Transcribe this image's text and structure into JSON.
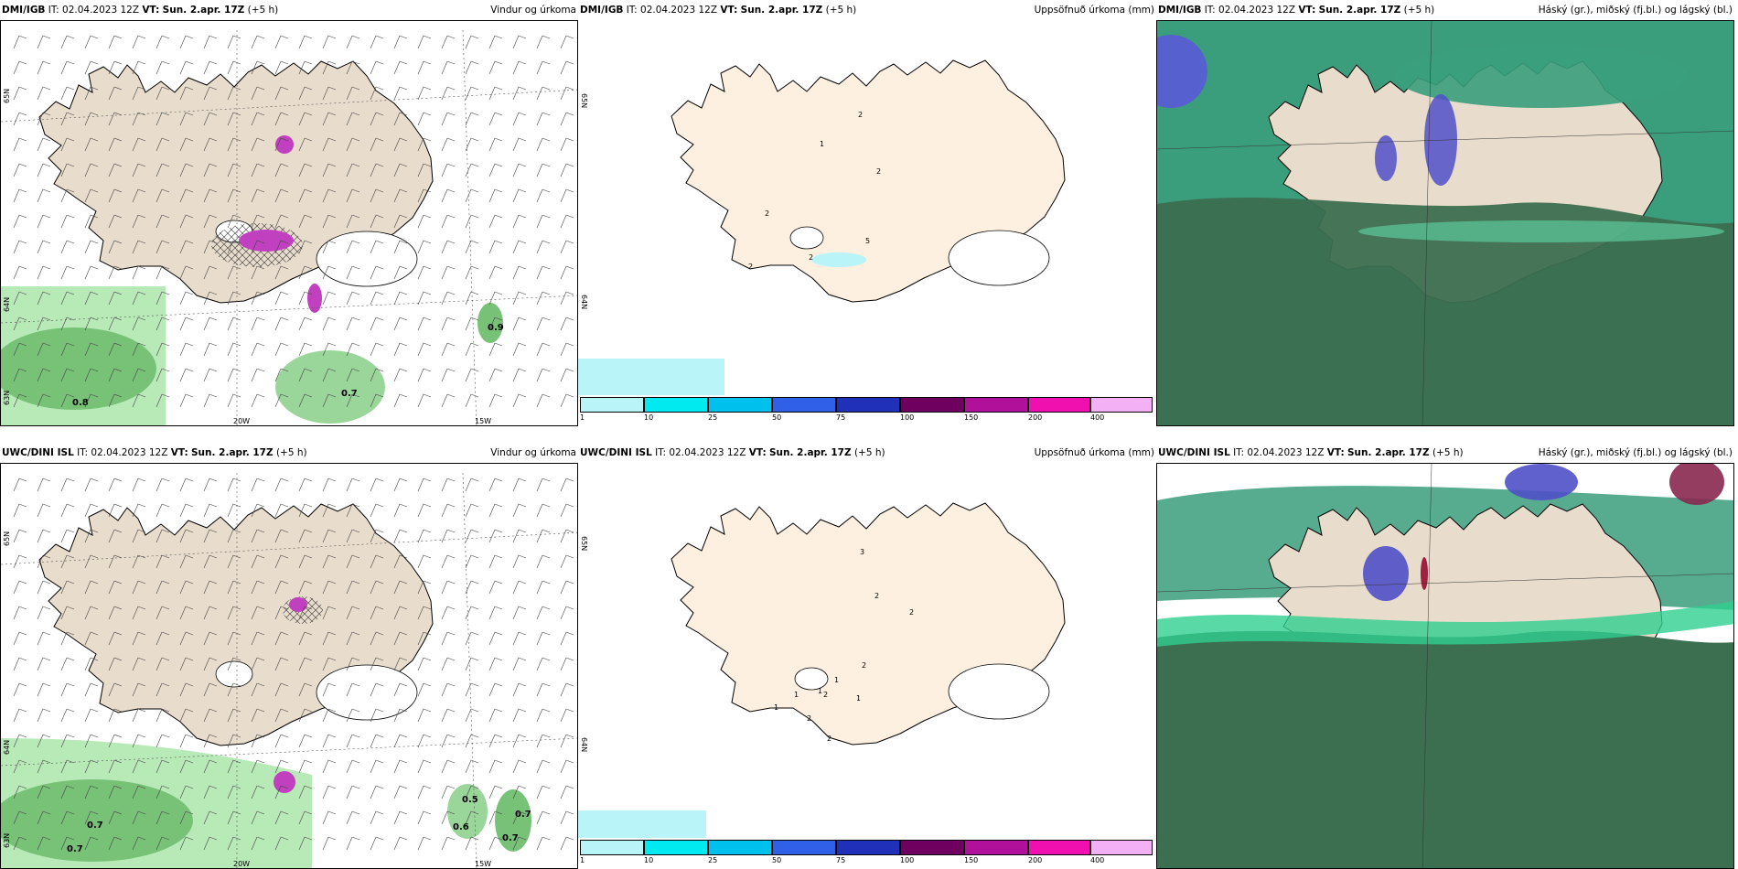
{
  "panels": [
    {
      "model": "DMI/IGB",
      "it_label": "IT:",
      "it": "02.04.2023 12Z",
      "vt_label": "VT:",
      "vt": "Sun. 2.apr. 17Z",
      "lead": "(+5 h)",
      "title": "Vindur og úrkoma",
      "values": [
        "0.8",
        "0.7",
        "0.9"
      ],
      "lat_labels": [
        "65N",
        "64N",
        "63N"
      ],
      "lon_labels": [
        "20W",
        "15W"
      ]
    },
    {
      "model": "DMI/IGB",
      "it_label": "IT:",
      "it": "02.04.2023 12Z",
      "vt_label": "VT:",
      "vt": "Sun. 2.apr. 17Z",
      "lead": "(+5 h)",
      "title": "Uppsöfnuð úrkoma (mm)",
      "values": [
        "2",
        "1",
        "2",
        "2",
        "2",
        "2",
        "5"
      ],
      "lat_labels": [
        "65N",
        "64N"
      ]
    },
    {
      "model": "DMI/IGB",
      "it_label": "IT:",
      "it": "02.04.2023 12Z",
      "vt_label": "VT:",
      "vt": "Sun. 2.apr. 17Z",
      "lead": "(+5 h)",
      "title": "Háský (gr.), miðský (fj.bl.) og lágský (bl.)"
    },
    {
      "model": "UWC/DINI ISL",
      "it_label": "IT:",
      "it": "02.04.2023 12Z",
      "vt_label": "VT:",
      "vt": "Sun. 2.apr. 17Z",
      "lead": "(+5 h)",
      "title": "Vindur og úrkoma",
      "values": [
        "0.7",
        "0.7",
        "0.5",
        "0.6",
        "0.7",
        "0.7"
      ],
      "lat_labels": [
        "65N",
        "64N",
        "63N"
      ],
      "lon_labels": [
        "20W",
        "15W"
      ]
    },
    {
      "model": "UWC/DINI ISL",
      "it_label": "IT:",
      "it": "02.04.2023 12Z",
      "vt_label": "VT:",
      "vt": "Sun. 2.apr. 17Z",
      "lead": "(+5 h)",
      "title": "Uppsöfnuð úrkoma (mm)",
      "values": [
        "3",
        "2",
        "2",
        "2",
        "1",
        "1",
        "2",
        "1",
        "1",
        "1",
        "2",
        "2"
      ],
      "lat_labels": [
        "65N",
        "64N"
      ]
    },
    {
      "model": "UWC/DINI ISL",
      "it_label": "IT:",
      "it": "02.04.2023 12Z",
      "vt_label": "VT:",
      "vt": "Sun. 2.apr. 17Z",
      "lead": "(+5 h)",
      "title": "Háský (gr.), miðský (fj.bl.) og lágský (bl.)"
    }
  ],
  "colorbar": {
    "ticks": [
      "1",
      "10",
      "25",
      "50",
      "75",
      "100",
      "150",
      "200",
      "400"
    ],
    "colors": [
      "#b8f4f8",
      "#00eaf0",
      "#00c0ee",
      "#3060e8",
      "#2030b8",
      "#700060",
      "#b0109a",
      "#f010b0",
      "#f4b0f4"
    ]
  },
  "colors": {
    "land": "#e8dccc",
    "land_precip": "#fdf0e0",
    "sea": "#ffffff",
    "precip_green": "#77c277",
    "cloud_dark": "#3c6e50",
    "cloud_mid": "#3a9e7c"
  }
}
